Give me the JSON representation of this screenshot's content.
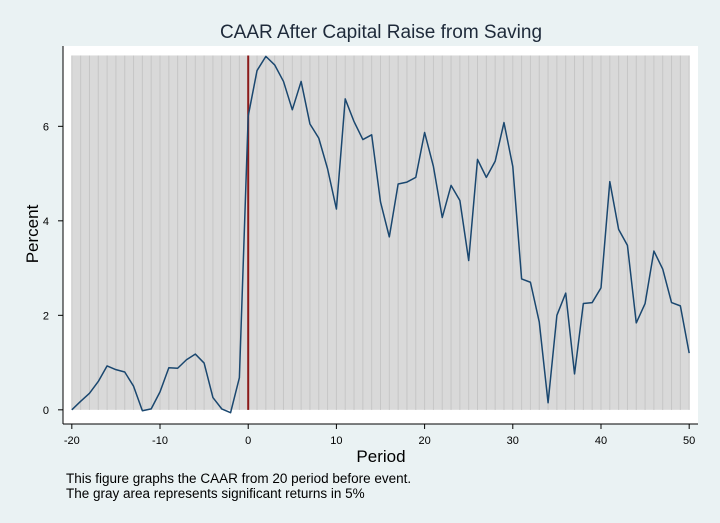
{
  "colors": {
    "background": "#eaf2f3",
    "plot_area": "#ffffff",
    "significance_band": "#d9d9d9",
    "significance_lines": "#c6c6c6",
    "series_line": "#1a476f",
    "event_line": "#8b1a1a"
  },
  "notes": [
    "This figure graphs the CAAR from 20 period before event.",
    "The gray area represents significant returns in 5%"
  ],
  "chart_data": {
    "type": "line",
    "title": "CAAR After Capital Raise from Saving",
    "xlabel": "Period",
    "ylabel": "Percent",
    "xlim": [
      -21,
      51
    ],
    "ylim": [
      -0.3,
      7.7
    ],
    "xticks": [
      -20,
      -10,
      0,
      10,
      20,
      30,
      40,
      50
    ],
    "yticks": [
      0,
      2,
      4,
      6
    ],
    "grid": false,
    "legend": "none",
    "event_line_x": 0,
    "significant_region": {
      "x": [
        -20,
        50
      ],
      "y": [
        0,
        7.5
      ]
    },
    "series": [
      {
        "x": [
          -20,
          -19,
          -18,
          -17,
          -16,
          -15,
          -14,
          -13,
          -12,
          -11,
          -10,
          -9,
          -8,
          -7,
          -6,
          -5,
          -4,
          -3,
          -2,
          -1,
          0,
          1,
          2,
          3,
          4,
          5,
          6,
          7,
          8,
          9,
          10,
          11,
          12,
          13,
          14,
          15,
          16,
          17,
          18,
          19,
          20,
          21,
          22,
          23,
          24,
          25,
          26,
          27,
          28,
          29,
          30,
          31,
          32,
          33,
          34,
          35,
          36,
          37,
          38,
          39,
          40,
          41,
          42,
          43,
          44,
          45,
          46,
          47,
          48,
          49,
          50
        ],
        "values": [
          0.0,
          0.18,
          0.35,
          0.6,
          0.93,
          0.85,
          0.8,
          0.5,
          -0.02,
          0.02,
          0.38,
          0.89,
          0.88,
          1.06,
          1.18,
          0.99,
          0.26,
          0.02,
          -0.06,
          0.68,
          6.22,
          7.18,
          7.48,
          7.3,
          6.95,
          6.35,
          6.95,
          6.05,
          5.75,
          5.1,
          4.25,
          6.58,
          6.1,
          5.72,
          5.82,
          4.4,
          3.66,
          4.78,
          4.82,
          4.92,
          5.87,
          5.15,
          4.07,
          4.75,
          4.43,
          3.16,
          5.3,
          4.92,
          5.26,
          6.08,
          5.15,
          2.77,
          2.7,
          1.86,
          0.15,
          2.0,
          2.47,
          0.76,
          2.25,
          2.27,
          2.58,
          4.83,
          3.82,
          3.48,
          1.84,
          2.25,
          3.36,
          2.98,
          2.27,
          2.2,
          1.2
        ]
      }
    ]
  }
}
